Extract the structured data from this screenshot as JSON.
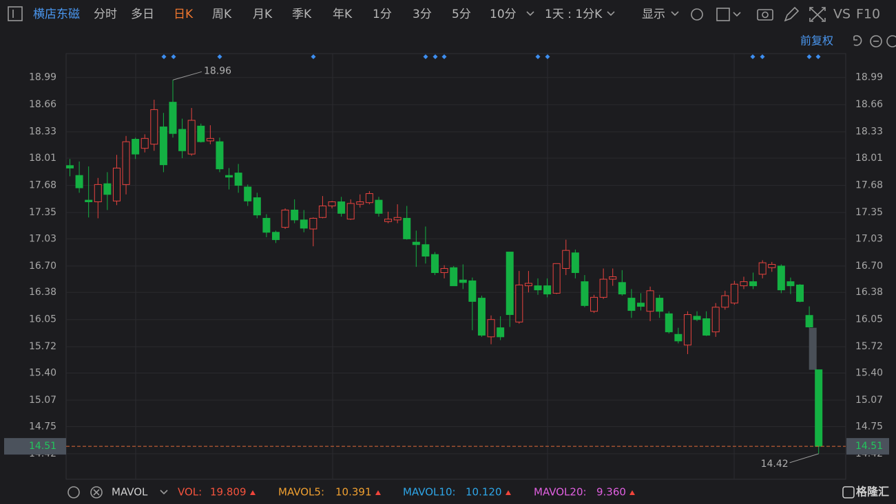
{
  "toolbar": {
    "stock": "横店东磁",
    "periods": [
      "分时",
      "多日",
      "日K",
      "周K",
      "月K",
      "季K",
      "年K",
      "1分",
      "3分",
      "5分",
      "10分"
    ],
    "active": "日K",
    "interval": "1天 : 1分K",
    "display": "显示",
    "vs": "VS",
    "f10": "F10"
  },
  "adjust": "前复权",
  "chart_data": {
    "type": "candlestick",
    "categories": [
      null,
      null,
      null,
      null,
      null,
      null,
      null,
      null,
      null,
      null,
      null,
      null,
      null,
      null,
      null,
      null,
      null,
      null,
      null,
      null,
      null,
      null,
      null,
      null,
      null,
      null,
      null,
      null,
      null,
      null,
      null,
      null,
      null,
      null,
      null,
      null,
      null,
      null,
      null,
      null,
      null,
      null,
      null,
      null,
      null,
      null,
      null,
      null,
      null,
      null,
      null,
      null,
      null,
      null,
      null,
      null,
      null,
      null,
      null,
      null,
      null,
      null,
      null,
      null,
      null,
      null,
      null,
      null,
      null,
      null,
      null,
      null,
      null,
      null,
      null,
      null,
      null,
      null,
      null,
      null,
      null
    ],
    "open": [
      17.92,
      17.8,
      17.5,
      17.48,
      17.7,
      17.49,
      17.69,
      18.24,
      18.13,
      18.18,
      18.39,
      18.69,
      18.36,
      18.06,
      18.4,
      18.22,
      18.21,
      17.8,
      17.83,
      17.66,
      17.53,
      17.28,
      17.11,
      17.17,
      17.38,
      17.26,
      17.15,
      17.29,
      17.43,
      17.48,
      17.27,
      17.45,
      17.47,
      17.5,
      17.24,
      17.26,
      17.28,
      16.99,
      16.96,
      16.84,
      16.62,
      16.68,
      16.53,
      16.52,
      16.31,
      15.84,
      15.95,
      16.87,
      16.02,
      16.46,
      16.46,
      16.46,
      16.37,
      16.67,
      16.86,
      16.51,
      16.15,
      16.32,
      16.54,
      16.5,
      16.31,
      16.25,
      16.15,
      16.31,
      16.12,
      15.87,
      15.74,
      16.09,
      16.06,
      15.9,
      16.2,
      16.25,
      16.46,
      16.51,
      16.6,
      16.68,
      16.7,
      16.51,
      16.47,
      16.1,
      15.44
    ],
    "high": [
      18.0,
      17.97,
      17.91,
      17.77,
      17.84,
      18.05,
      18.28,
      18.26,
      18.3,
      18.72,
      18.56,
      18.96,
      18.49,
      18.62,
      18.43,
      18.41,
      18.26,
      17.89,
      17.94,
      17.69,
      17.59,
      17.33,
      17.13,
      17.4,
      17.51,
      17.38,
      17.29,
      17.55,
      17.49,
      17.54,
      17.51,
      17.57,
      17.61,
      17.54,
      17.36,
      17.45,
      17.43,
      17.13,
      17.18,
      16.87,
      16.71,
      16.7,
      16.72,
      16.56,
      16.34,
      16.1,
      16.09,
      16.87,
      16.64,
      16.64,
      16.55,
      16.55,
      16.73,
      17.02,
      16.9,
      16.59,
      16.35,
      16.67,
      16.67,
      16.65,
      16.42,
      16.37,
      16.45,
      16.35,
      16.15,
      15.95,
      16.15,
      16.15,
      16.15,
      16.25,
      16.4,
      16.52,
      16.57,
      16.62,
      16.77,
      16.75,
      16.72,
      16.56,
      16.48,
      16.21,
      15.44
    ],
    "low": [
      17.79,
      17.59,
      17.29,
      17.28,
      17.38,
      17.44,
      17.57,
      18.0,
      18.08,
      18.1,
      17.84,
      18.26,
      18.01,
      18.04,
      18.2,
      18.18,
      17.84,
      17.63,
      17.59,
      17.43,
      17.28,
      17.05,
      16.98,
      17.15,
      17.22,
      17.11,
      16.94,
      17.28,
      17.4,
      17.3,
      17.26,
      17.41,
      17.45,
      17.3,
      17.22,
      17.22,
      17.02,
      16.69,
      16.73,
      16.59,
      16.55,
      16.46,
      16.42,
      15.92,
      15.84,
      15.75,
      15.8,
      15.96,
      16.0,
      16.38,
      16.35,
      16.32,
      16.36,
      16.59,
      16.55,
      16.2,
      16.13,
      16.3,
      16.46,
      16.34,
      16.07,
      16.16,
      16.03,
      16.07,
      15.88,
      15.76,
      15.63,
      16.03,
      15.85,
      15.84,
      16.17,
      16.23,
      16.42,
      16.42,
      16.55,
      16.63,
      16.37,
      16.36,
      16.26,
      15.95,
      14.42
    ],
    "close": [
      17.89,
      17.65,
      17.48,
      17.69,
      17.57,
      17.89,
      18.21,
      18.06,
      18.25,
      18.6,
      17.93,
      18.31,
      18.1,
      18.47,
      18.21,
      18.25,
      17.88,
      17.78,
      17.68,
      17.49,
      17.32,
      17.11,
      17.02,
      17.38,
      17.26,
      17.16,
      17.28,
      17.43,
      17.48,
      17.34,
      17.46,
      17.48,
      17.58,
      17.34,
      17.27,
      17.29,
      17.03,
      16.96,
      16.82,
      16.62,
      16.67,
      16.46,
      16.5,
      16.27,
      15.86,
      16.05,
      15.84,
      16.11,
      16.47,
      16.49,
      16.41,
      16.36,
      16.73,
      16.89,
      16.62,
      16.22,
      16.32,
      16.54,
      16.57,
      16.36,
      16.16,
      16.21,
      16.4,
      16.15,
      15.9,
      15.79,
      16.11,
      16.05,
      15.86,
      16.2,
      16.34,
      16.48,
      16.51,
      16.46,
      16.74,
      16.72,
      16.41,
      16.46,
      16.27,
      15.96,
      14.51
    ],
    "up_color": "#e8433f",
    "down_color": "#14b143",
    "ylim": [
      14.11,
      19.28
    ],
    "yticks": [
      18.99,
      18.66,
      18.33,
      18.01,
      17.68,
      17.35,
      17.03,
      {
        "value": 16.7,
        "label": "16.70"
      },
      16.38,
      16.05,
      15.72,
      {
        "value": 15.4,
        "label": "15.40"
      },
      15.07,
      14.75,
      14.42
    ],
    "grid": true
  },
  "indicator": {
    "name": "MAVOL",
    "items": [
      {
        "label": "VOL:",
        "value": 19.809,
        "color": "#f5533d"
      },
      {
        "label": "MAVOL5:",
        "value": 10.391,
        "color": "#f0a030"
      },
      {
        "label": "MAVOL10:",
        "value": 10.12,
        "value_label": "10.120",
        "color": "#2ea6e8"
      },
      {
        "label": "MAVOL20:",
        "value": 9.36,
        "value_label": "9.360",
        "color": "#e060e0"
      }
    ]
  },
  "logo": "格隆汇"
}
